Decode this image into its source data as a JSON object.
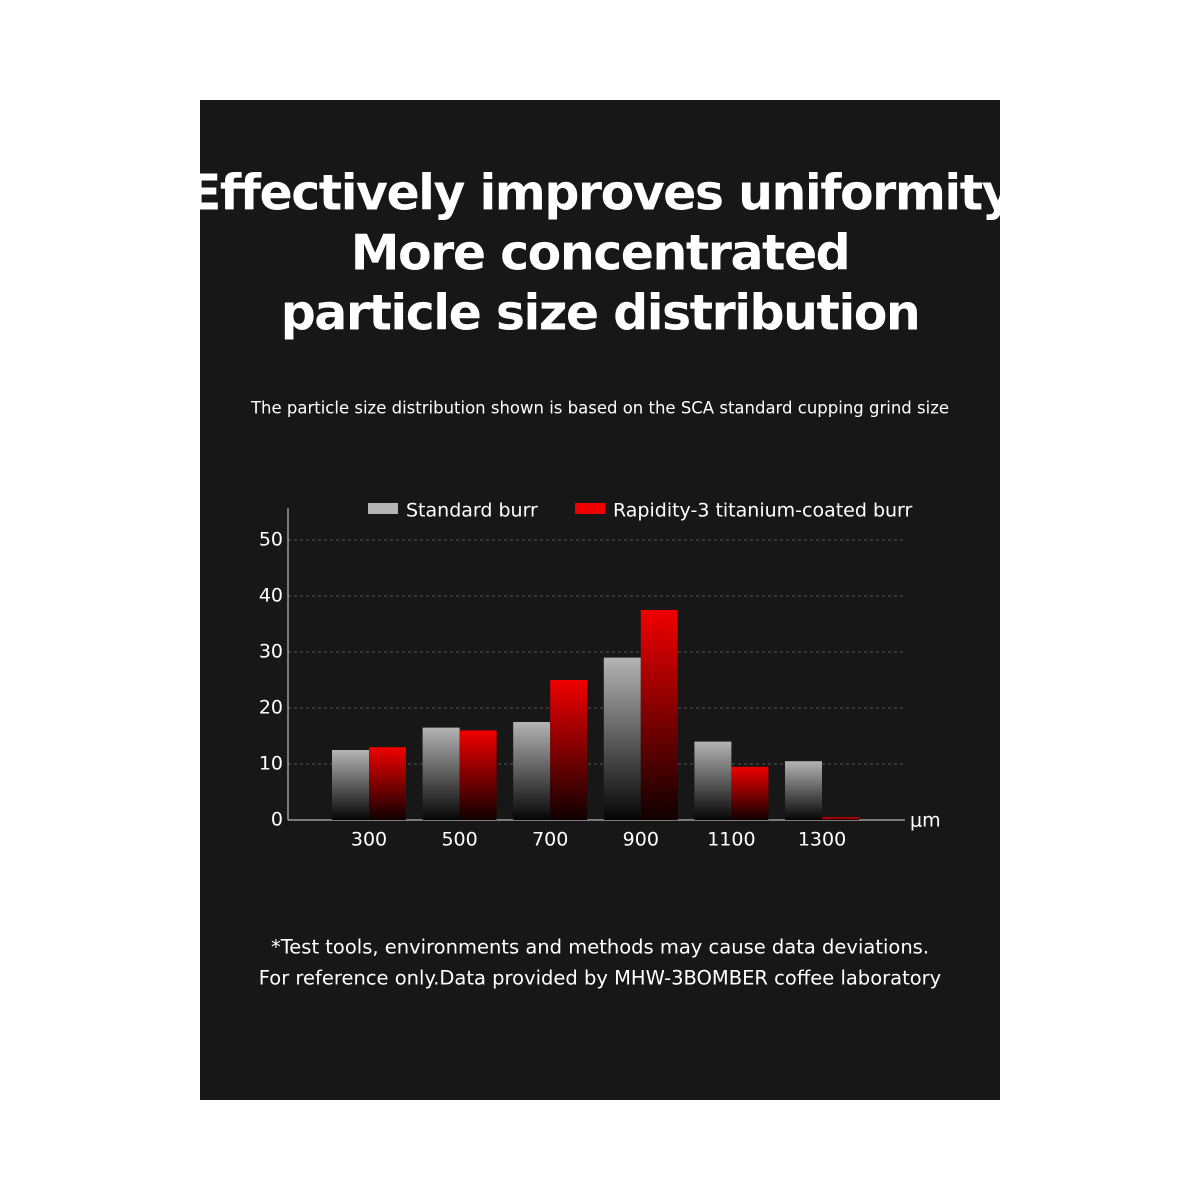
{
  "chart_data": {
    "type": "bar",
    "title": [
      "Effectively improves uniformity",
      "More concentrated",
      "particle size distribution"
    ],
    "subtitle": "The particle size distribution shown is based on the SCA standard cupping grind size",
    "x_label": "μm",
    "categories": [
      "300",
      "500",
      "700",
      "900",
      "1100",
      "1300"
    ],
    "series": [
      {
        "name": "Standard burr",
        "color": "#b4b4b4",
        "values": [
          12.5,
          16.5,
          17.5,
          29,
          14,
          10.5
        ]
      },
      {
        "name": "Rapidity-3 titanium-coated burr",
        "color": "#f00000",
        "values": [
          13,
          16,
          25,
          37.5,
          9.5,
          0.5
        ]
      }
    ],
    "ylim": [
      0,
      55
    ],
    "yticks": [
      0,
      10,
      20,
      30,
      40,
      50
    ],
    "grid": true,
    "notes": [
      "*Test tools, environments and methods may cause data deviations.",
      "For reference only.Data provided by MHW-3BOMBER coffee laboratory"
    ]
  }
}
